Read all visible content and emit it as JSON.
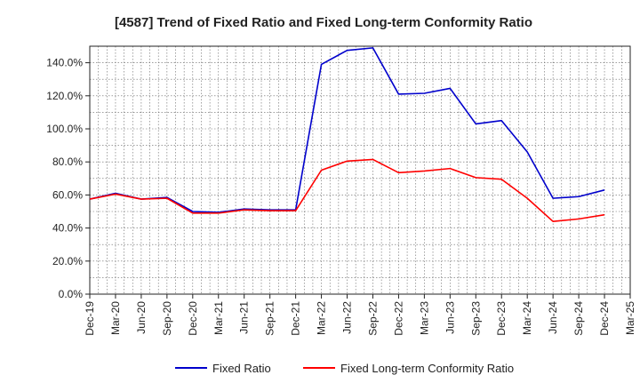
{
  "chart_data": {
    "type": "line",
    "title": "[4587]  Trend of Fixed Ratio and Fixed Long-term Conformity Ratio",
    "xlabel": "",
    "ylabel": "",
    "ylim": [
      0,
      150
    ],
    "yticks": [
      0,
      20,
      40,
      60,
      80,
      100,
      120,
      140
    ],
    "ytick_labels": [
      "0.0%",
      "20.0%",
      "40.0%",
      "60.0%",
      "80.0%",
      "100.0%",
      "120.0%",
      "140.0%"
    ],
    "x_tick_labels": [
      "Dec-19",
      "Mar-20",
      "Jun-20",
      "Sep-20",
      "Dec-20",
      "Mar-21",
      "Jun-21",
      "Sep-21",
      "Dec-21",
      "Mar-22",
      "Jun-22",
      "Sep-22",
      "Dec-22",
      "Mar-23",
      "Jun-23",
      "Sep-23",
      "Dec-23",
      "Mar-24",
      "Jun-24",
      "Sep-24",
      "Dec-24",
      "Mar-25"
    ],
    "grid": true,
    "legend_position": "bottom",
    "series": [
      {
        "name": "Fixed Ratio",
        "color": "#0000cc",
        "x": [
          "Dec-19",
          "Mar-20",
          "Jun-20",
          "Sep-20",
          "Dec-20",
          "Mar-21",
          "Jun-21",
          "Sep-21",
          "Dec-21",
          "Mar-22",
          "Jun-22",
          "Sep-22",
          "Dec-22",
          "Mar-23",
          "Jun-23",
          "Sep-23",
          "Dec-23",
          "Mar-24",
          "Jun-24",
          "Sep-24",
          "Dec-24"
        ],
        "values": [
          57.5,
          61,
          57.5,
          58.5,
          50,
          49.5,
          51.5,
          51,
          51,
          139,
          147.5,
          149,
          121,
          121.5,
          124.5,
          103,
          105,
          86,
          58,
          59,
          63
        ]
      },
      {
        "name": "Fixed Long-term Conformity Ratio",
        "color": "#ff0000",
        "x": [
          "Dec-19",
          "Mar-20",
          "Jun-20",
          "Sep-20",
          "Dec-20",
          "Mar-21",
          "Jun-21",
          "Sep-21",
          "Dec-21",
          "Mar-22",
          "Jun-22",
          "Sep-22",
          "Dec-22",
          "Mar-23",
          "Jun-23",
          "Sep-23",
          "Dec-23",
          "Mar-24",
          "Jun-24",
          "Sep-24",
          "Dec-24"
        ],
        "values": [
          57.5,
          60.5,
          57.5,
          58,
          49,
          49,
          51,
          50.5,
          50.5,
          75,
          80.5,
          81.5,
          73.5,
          74.5,
          76,
          70.5,
          69.5,
          58,
          44,
          45.5,
          48
        ]
      }
    ]
  }
}
